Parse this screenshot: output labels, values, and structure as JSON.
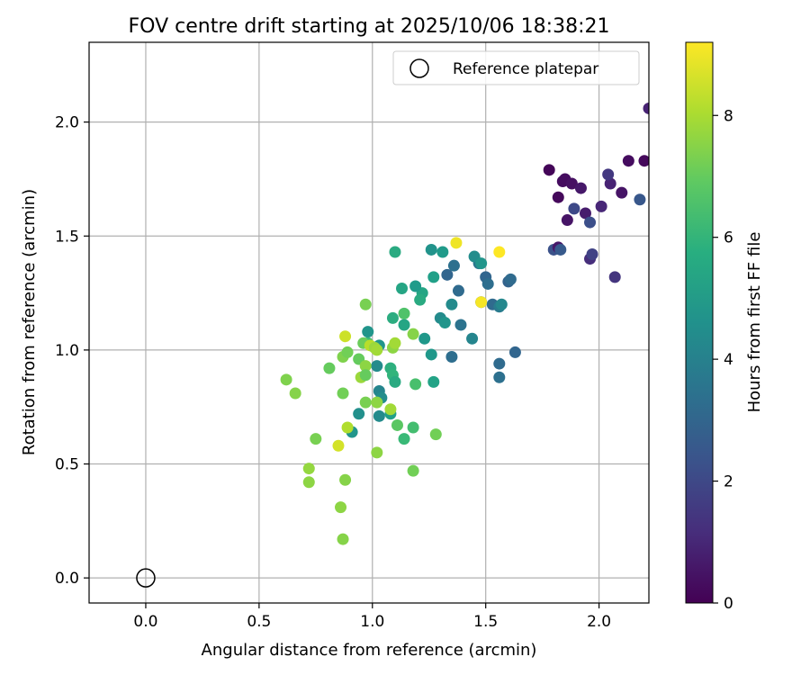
{
  "chart_data": {
    "type": "scatter",
    "title": "FOV centre drift starting at 2025/10/06 18:38:21",
    "xlabel": "Angular distance from reference (arcmin)",
    "ylabel": "Rotation from reference (arcmin)",
    "xlim": [
      -0.25,
      2.22
    ],
    "ylim": [
      -0.11,
      2.35
    ],
    "x_ticks": [
      0.0,
      0.5,
      1.0,
      1.5,
      2.0
    ],
    "x_tick_labels": [
      "0.0",
      "0.5",
      "1.0",
      "1.5",
      "2.0"
    ],
    "y_ticks": [
      0.0,
      0.5,
      1.0,
      1.5,
      2.0
    ],
    "y_tick_labels": [
      "0.0",
      "0.5",
      "1.0",
      "1.5",
      "2.0"
    ],
    "grid": true,
    "legend": {
      "placement": "top-right",
      "entries": [
        "Reference platepar"
      ]
    },
    "reference_point": {
      "x": 0.0,
      "y": 0.0
    },
    "colorbar": {
      "label": "Hours from first FF file",
      "colormap": "viridis",
      "range": [
        0,
        9.2
      ],
      "ticks": [
        0,
        2,
        4,
        6,
        8
      ],
      "tick_labels": [
        "0",
        "2",
        "4",
        "6",
        "8"
      ]
    },
    "points": [
      {
        "x": 1.78,
        "y": 1.79,
        "c": 0.1
      },
      {
        "x": 1.82,
        "y": 1.67,
        "c": 0.2
      },
      {
        "x": 1.84,
        "y": 1.74,
        "c": 0.3
      },
      {
        "x": 1.85,
        "y": 1.75,
        "c": 0.3
      },
      {
        "x": 1.88,
        "y": 1.73,
        "c": 0.4
      },
      {
        "x": 1.86,
        "y": 1.57,
        "c": 0.5
      },
      {
        "x": 1.92,
        "y": 1.71,
        "c": 0.6
      },
      {
        "x": 1.94,
        "y": 1.6,
        "c": 0.7
      },
      {
        "x": 2.01,
        "y": 1.63,
        "c": 1.0
      },
      {
        "x": 2.05,
        "y": 1.73,
        "c": 0.9
      },
      {
        "x": 2.1,
        "y": 1.69,
        "c": 0.5
      },
      {
        "x": 2.13,
        "y": 1.83,
        "c": 0.3
      },
      {
        "x": 2.2,
        "y": 1.83,
        "c": 0.2
      },
      {
        "x": 2.22,
        "y": 2.06,
        "c": 0.9
      },
      {
        "x": 1.89,
        "y": 1.62,
        "c": 2.0
      },
      {
        "x": 1.96,
        "y": 1.56,
        "c": 2.2
      },
      {
        "x": 2.04,
        "y": 1.77,
        "c": 1.5
      },
      {
        "x": 2.18,
        "y": 1.66,
        "c": 2.5
      },
      {
        "x": 1.96,
        "y": 1.4,
        "c": 1.2
      },
      {
        "x": 1.97,
        "y": 1.42,
        "c": 1.8
      },
      {
        "x": 2.07,
        "y": 1.32,
        "c": 1.4
      },
      {
        "x": 1.8,
        "y": 1.44,
        "c": 2.3
      },
      {
        "x": 1.82,
        "y": 1.45,
        "c": 0.6
      },
      {
        "x": 1.83,
        "y": 1.44,
        "c": 2.6
      },
      {
        "x": 1.33,
        "y": 1.33,
        "c": 3.0
      },
      {
        "x": 1.36,
        "y": 1.37,
        "c": 3.4
      },
      {
        "x": 1.38,
        "y": 1.26,
        "c": 3.2
      },
      {
        "x": 1.39,
        "y": 1.11,
        "c": 3.5
      },
      {
        "x": 1.35,
        "y": 0.97,
        "c": 3.3
      },
      {
        "x": 1.47,
        "y": 1.38,
        "c": 3.6
      },
      {
        "x": 1.5,
        "y": 1.32,
        "c": 3.0
      },
      {
        "x": 1.51,
        "y": 1.29,
        "c": 3.3
      },
      {
        "x": 1.48,
        "y": 1.21,
        "c": 2.8
      },
      {
        "x": 1.53,
        "y": 1.2,
        "c": 3.2
      },
      {
        "x": 1.56,
        "y": 1.19,
        "c": 3.8
      },
      {
        "x": 1.57,
        "y": 1.2,
        "c": 4.3
      },
      {
        "x": 1.6,
        "y": 1.3,
        "c": 2.9
      },
      {
        "x": 1.61,
        "y": 1.31,
        "c": 3.2
      },
      {
        "x": 1.56,
        "y": 0.94,
        "c": 3.2
      },
      {
        "x": 1.56,
        "y": 0.88,
        "c": 3.4
      },
      {
        "x": 1.63,
        "y": 0.99,
        "c": 3.0
      },
      {
        "x": 1.44,
        "y": 1.05,
        "c": 4.2
      },
      {
        "x": 1.45,
        "y": 1.41,
        "c": 4.5
      },
      {
        "x": 1.48,
        "y": 1.38,
        "c": 4.8
      },
      {
        "x": 1.35,
        "y": 1.2,
        "c": 4.4
      },
      {
        "x": 1.31,
        "y": 1.43,
        "c": 5.0
      },
      {
        "x": 1.26,
        "y": 1.44,
        "c": 4.7
      },
      {
        "x": 1.27,
        "y": 1.32,
        "c": 5.2
      },
      {
        "x": 1.3,
        "y": 1.14,
        "c": 4.4
      },
      {
        "x": 1.32,
        "y": 1.12,
        "c": 4.8
      },
      {
        "x": 1.26,
        "y": 0.98,
        "c": 4.9
      },
      {
        "x": 1.27,
        "y": 0.86,
        "c": 5.3
      },
      {
        "x": 1.22,
        "y": 1.25,
        "c": 5.4
      },
      {
        "x": 1.19,
        "y": 1.28,
        "c": 5.0
      },
      {
        "x": 1.21,
        "y": 1.22,
        "c": 5.6
      },
      {
        "x": 1.23,
        "y": 1.05,
        "c": 4.9
      },
      {
        "x": 1.1,
        "y": 1.43,
        "c": 5.6
      },
      {
        "x": 1.13,
        "y": 1.27,
        "c": 5.4
      },
      {
        "x": 1.09,
        "y": 1.14,
        "c": 5.7
      },
      {
        "x": 1.14,
        "y": 1.11,
        "c": 5.4
      },
      {
        "x": 1.14,
        "y": 1.16,
        "c": 6.6
      },
      {
        "x": 0.98,
        "y": 1.08,
        "c": 4.8
      },
      {
        "x": 0.98,
        "y": 1.03,
        "c": 6.2
      },
      {
        "x": 1.03,
        "y": 1.02,
        "c": 4.8
      },
      {
        "x": 1.02,
        "y": 0.93,
        "c": 4.4
      },
      {
        "x": 1.08,
        "y": 0.92,
        "c": 5.8
      },
      {
        "x": 1.09,
        "y": 0.89,
        "c": 6.0
      },
      {
        "x": 1.1,
        "y": 0.86,
        "c": 5.6
      },
      {
        "x": 1.03,
        "y": 0.82,
        "c": 4.2
      },
      {
        "x": 1.04,
        "y": 0.79,
        "c": 4.5
      },
      {
        "x": 1.03,
        "y": 0.71,
        "c": 4.4
      },
      {
        "x": 1.08,
        "y": 0.72,
        "c": 5.2
      },
      {
        "x": 0.94,
        "y": 0.72,
        "c": 4.6
      },
      {
        "x": 0.91,
        "y": 0.64,
        "c": 4.8
      },
      {
        "x": 1.11,
        "y": 0.67,
        "c": 6.8
      },
      {
        "x": 1.18,
        "y": 0.66,
        "c": 6.4
      },
      {
        "x": 1.14,
        "y": 0.61,
        "c": 6.2
      },
      {
        "x": 1.19,
        "y": 0.85,
        "c": 6.5
      },
      {
        "x": 1.28,
        "y": 0.63,
        "c": 7.2
      },
      {
        "x": 1.18,
        "y": 0.47,
        "c": 7.2
      },
      {
        "x": 1.18,
        "y": 1.07,
        "c": 7.5
      },
      {
        "x": 0.62,
        "y": 0.87,
        "c": 7.4
      },
      {
        "x": 0.66,
        "y": 0.81,
        "c": 7.5
      },
      {
        "x": 0.81,
        "y": 0.92,
        "c": 7.0
      },
      {
        "x": 0.87,
        "y": 0.81,
        "c": 7.2
      },
      {
        "x": 0.87,
        "y": 0.97,
        "c": 7.4
      },
      {
        "x": 0.89,
        "y": 0.99,
        "c": 7.2
      },
      {
        "x": 0.94,
        "y": 0.96,
        "c": 7.0
      },
      {
        "x": 0.97,
        "y": 0.93,
        "c": 7.6
      },
      {
        "x": 0.95,
        "y": 0.88,
        "c": 7.8
      },
      {
        "x": 0.97,
        "y": 0.89,
        "c": 7.0
      },
      {
        "x": 0.97,
        "y": 1.2,
        "c": 7.3
      },
      {
        "x": 0.96,
        "y": 1.03,
        "c": 7.1
      },
      {
        "x": 0.99,
        "y": 1.02,
        "c": 8.2
      },
      {
        "x": 1.01,
        "y": 1.01,
        "c": 7.8
      },
      {
        "x": 1.02,
        "y": 1.0,
        "c": 7.9
      },
      {
        "x": 1.09,
        "y": 1.01,
        "c": 7.6
      },
      {
        "x": 1.1,
        "y": 1.03,
        "c": 7.9
      },
      {
        "x": 0.88,
        "y": 1.06,
        "c": 8.5
      },
      {
        "x": 0.97,
        "y": 0.77,
        "c": 7.3
      },
      {
        "x": 1.02,
        "y": 0.77,
        "c": 7.6
      },
      {
        "x": 1.08,
        "y": 0.74,
        "c": 7.9
      },
      {
        "x": 0.89,
        "y": 0.66,
        "c": 8.1
      },
      {
        "x": 0.75,
        "y": 0.61,
        "c": 7.3
      },
      {
        "x": 0.85,
        "y": 0.58,
        "c": 8.6
      },
      {
        "x": 1.02,
        "y": 0.55,
        "c": 7.6
      },
      {
        "x": 0.72,
        "y": 0.48,
        "c": 7.7
      },
      {
        "x": 0.72,
        "y": 0.42,
        "c": 7.6
      },
      {
        "x": 0.88,
        "y": 0.43,
        "c": 7.5
      },
      {
        "x": 0.86,
        "y": 0.31,
        "c": 7.6
      },
      {
        "x": 0.87,
        "y": 0.17,
        "c": 7.5
      },
      {
        "x": 1.37,
        "y": 1.47,
        "c": 9.0
      },
      {
        "x": 1.56,
        "y": 1.43,
        "c": 9.2
      },
      {
        "x": 1.48,
        "y": 1.21,
        "c": 9.1
      }
    ]
  }
}
